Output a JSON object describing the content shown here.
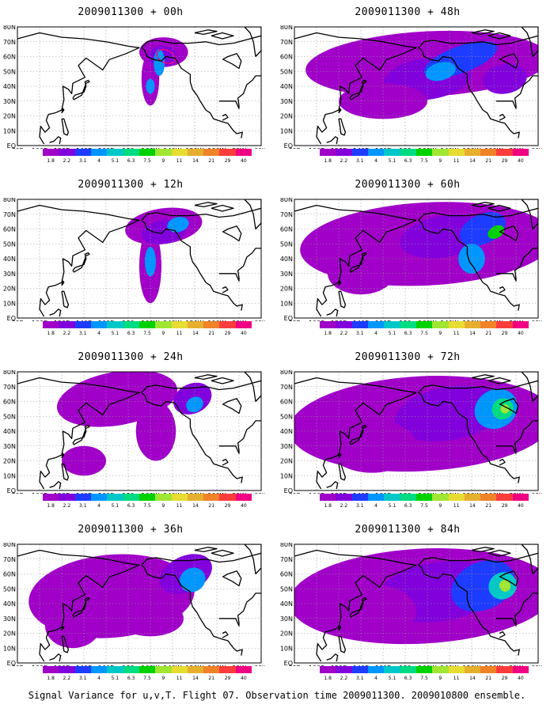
{
  "panels": [
    {
      "title": "2009011300 + 00h",
      "col": 0,
      "row": 0,
      "level": 0
    },
    {
      "title": "2009011300 + 48h",
      "col": 1,
      "row": 0,
      "level": 4
    },
    {
      "title": "2009011300 + 12h",
      "col": 0,
      "row": 1,
      "level": 1
    },
    {
      "title": "2009011300 + 60h",
      "col": 1,
      "row": 1,
      "level": 5
    },
    {
      "title": "2009011300 + 24h",
      "col": 0,
      "row": 2,
      "level": 2
    },
    {
      "title": "2009011300 + 72h",
      "col": 1,
      "row": 2,
      "level": 6
    },
    {
      "title": "2009011300 + 36h",
      "col": 0,
      "row": 3,
      "level": 3
    },
    {
      "title": "2009011300 + 84h",
      "col": 1,
      "row": 3,
      "level": 7
    }
  ],
  "lon_ticks": [
    "80E",
    "100E",
    "120E",
    "140E",
    "160E",
    "180",
    "160W",
    "140W",
    "120W",
    "100W",
    "80W",
    "60W"
  ],
  "lat_ticks": [
    "EQ",
    "10N",
    "20N",
    "30N",
    "40N",
    "50N",
    "60N",
    "70N",
    "80N"
  ],
  "colorbar": {
    "labels": [
      "1.8",
      "2.2",
      "3.1",
      "4",
      "5.1",
      "6.3",
      "7.5",
      "9",
      "11",
      "14",
      "21",
      "29",
      "40"
    ],
    "colors": [
      "#a000c8",
      "#8200dc",
      "#1e3cff",
      "#0096ff",
      "#00c8c8",
      "#00dc82",
      "#00d200",
      "#a0e632",
      "#e6dc32",
      "#e6af2d",
      "#f08228",
      "#fa3c3c",
      "#f00082"
    ]
  },
  "caption": "Signal Variance for u,v,T. Flight 07. Observation time 2009011300. 2009010800 ensemble."
}
